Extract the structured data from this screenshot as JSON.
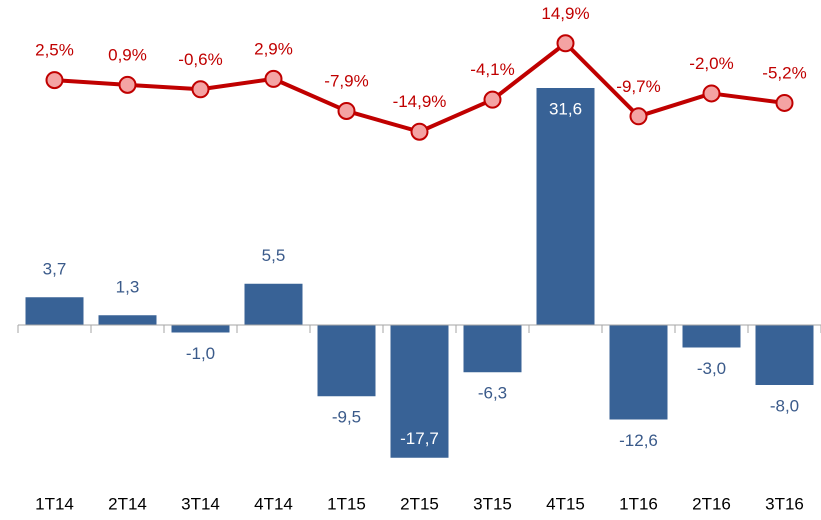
{
  "chart_data": {
    "type": "bar",
    "categories": [
      "1T14",
      "2T14",
      "3T14",
      "4T14",
      "1T15",
      "2T15",
      "3T15",
      "4T15",
      "1T16",
      "2T16",
      "3T16"
    ],
    "ylim": [
      -18,
      38
    ],
    "y2lim": [
      -16,
      16
    ],
    "series": [
      {
        "color": "#386296",
        "values": [
          3.7,
          1.3,
          -1.0,
          5.5,
          -9.5,
          -17.7,
          -6.3,
          31.6,
          -12.6,
          -3.0,
          -8.0
        ],
        "value_labels": [
          "3,7",
          "1,3",
          "-1,0",
          "5,5",
          "-9,5",
          "-17,7",
          "-6,3",
          "31,6",
          "-12,6",
          "-3,0",
          "-8,0"
        ]
      },
      {
        "type": "line",
        "axis": "y2",
        "color": "#c00000",
        "marker_color": "#f4a3a3",
        "values": [
          2.5,
          0.9,
          -0.6,
          2.9,
          -7.9,
          -14.9,
          -4.1,
          14.9,
          -9.7,
          -2.0,
          -5.2
        ],
        "value_labels": [
          "2,5%",
          "0,9%",
          "-0,6%",
          "2,9%",
          "-7,9%",
          "-14,9%",
          "-4,1%",
          "14,9%",
          "-9,7%",
          "-2,0%",
          "-5,2%"
        ]
      }
    ]
  }
}
